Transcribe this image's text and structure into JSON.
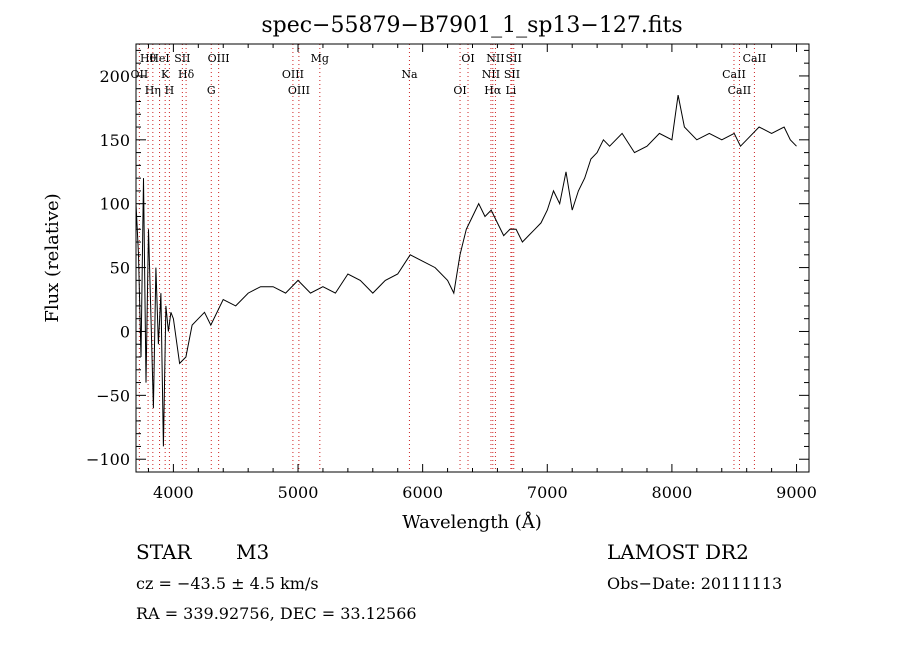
{
  "info": {
    "object_type": "STAR",
    "subclass": "M3",
    "survey": "LAMOST DR2",
    "velocity": "cz = −43.5 ± 4.5 km/s",
    "obs_date": "Obs−Date: 20111113",
    "coords": "RA = 339.92756, DEC =  33.12566"
  },
  "chart_data": {
    "type": "line",
    "title": "spec−55879−B7901_1_sp13−127.fits",
    "xlabel": "Wavelength (Å)",
    "ylabel": "Flux (relative)",
    "xlim": [
      3700,
      9100
    ],
    "ylim": [
      -110,
      225
    ],
    "xticks": [
      4000,
      5000,
      6000,
      7000,
      8000,
      9000
    ],
    "xtick_labels": [
      "4000",
      "5000",
      "6000",
      "7000",
      "8000",
      "9000"
    ],
    "yticks": [
      -100,
      -50,
      0,
      50,
      100,
      150,
      200
    ],
    "ytick_labels": [
      "−100",
      "−50",
      "0",
      "50",
      "100",
      "150",
      "200"
    ],
    "grid": false,
    "line_color": "#000000",
    "marker_color": "#cc2222",
    "series": [
      {
        "x": [
          3700,
          3720,
          3740,
          3760,
          3780,
          3800,
          3820,
          3840,
          3860,
          3880,
          3900,
          3920,
          3940,
          3960,
          3980,
          4000,
          4050,
          4100,
          4150,
          4200,
          4250,
          4300,
          4400,
          4500,
          4600,
          4700,
          4800,
          4900,
          5000,
          5100,
          5200,
          5300,
          5400,
          5500,
          5600,
          5700,
          5800,
          5900,
          6000,
          6100,
          6200,
          6250,
          6300,
          6350,
          6400,
          6450,
          6500,
          6550,
          6600,
          6650,
          6700,
          6750,
          6800,
          6850,
          6900,
          6950,
          7000,
          7050,
          7100,
          7150,
          7200,
          7250,
          7300,
          7350,
          7400,
          7450,
          7500,
          7600,
          7700,
          7800,
          7900,
          8000,
          8050,
          8100,
          8200,
          8300,
          8400,
          8500,
          8550,
          8600,
          8700,
          8800,
          8900,
          8950,
          9000
        ],
        "y": [
          100,
          60,
          -20,
          120,
          -40,
          80,
          10,
          -60,
          50,
          -10,
          30,
          -90,
          20,
          0,
          15,
          10,
          -25,
          -20,
          5,
          10,
          15,
          5,
          25,
          20,
          30,
          35,
          35,
          30,
          40,
          30,
          35,
          30,
          45,
          40,
          30,
          40,
          45,
          60,
          55,
          50,
          40,
          30,
          60,
          80,
          90,
          100,
          90,
          95,
          85,
          75,
          80,
          80,
          70,
          75,
          80,
          85,
          95,
          110,
          100,
          125,
          95,
          110,
          120,
          135,
          140,
          150,
          145,
          155,
          140,
          145,
          155,
          150,
          185,
          160,
          150,
          155,
          150,
          155,
          145,
          150,
          160,
          155,
          160,
          150,
          145
        ]
      }
    ],
    "line_markers": [
      {
        "label": "Hθ",
        "x": 3797
      },
      {
        "label": "OII",
        "x": 3727
      },
      {
        "label": "Hη",
        "x": 3835
      },
      {
        "label": "HeI",
        "x": 3889
      },
      {
        "label": "K",
        "x": 3934
      },
      {
        "label": "H",
        "x": 3968
      },
      {
        "label": "SII",
        "x": 4072
      },
      {
        "label": "Hδ",
        "x": 4102
      },
      {
        "label": "G",
        "x": 4304
      },
      {
        "label": "OIII",
        "x": 4363
      },
      {
        "label": "OIII",
        "x": 4959
      },
      {
        "label": "OIII",
        "x": 5007
      },
      {
        "label": "Mg",
        "x": 5175
      },
      {
        "label": "Na",
        "x": 5894
      },
      {
        "label": "OI",
        "x": 6300
      },
      {
        "label": "OI",
        "x": 6364
      },
      {
        "label": "NII",
        "x": 6548
      },
      {
        "label": "Hα",
        "x": 6563
      },
      {
        "label": "NII",
        "x": 6584
      },
      {
        "label": "SII",
        "x": 6717
      },
      {
        "label": "Li",
        "x": 6708
      },
      {
        "label": "SII",
        "x": 6731
      },
      {
        "label": "CaII",
        "x": 8498
      },
      {
        "label": "CaII",
        "x": 8542
      },
      {
        "label": "CaII",
        "x": 8662
      }
    ]
  }
}
